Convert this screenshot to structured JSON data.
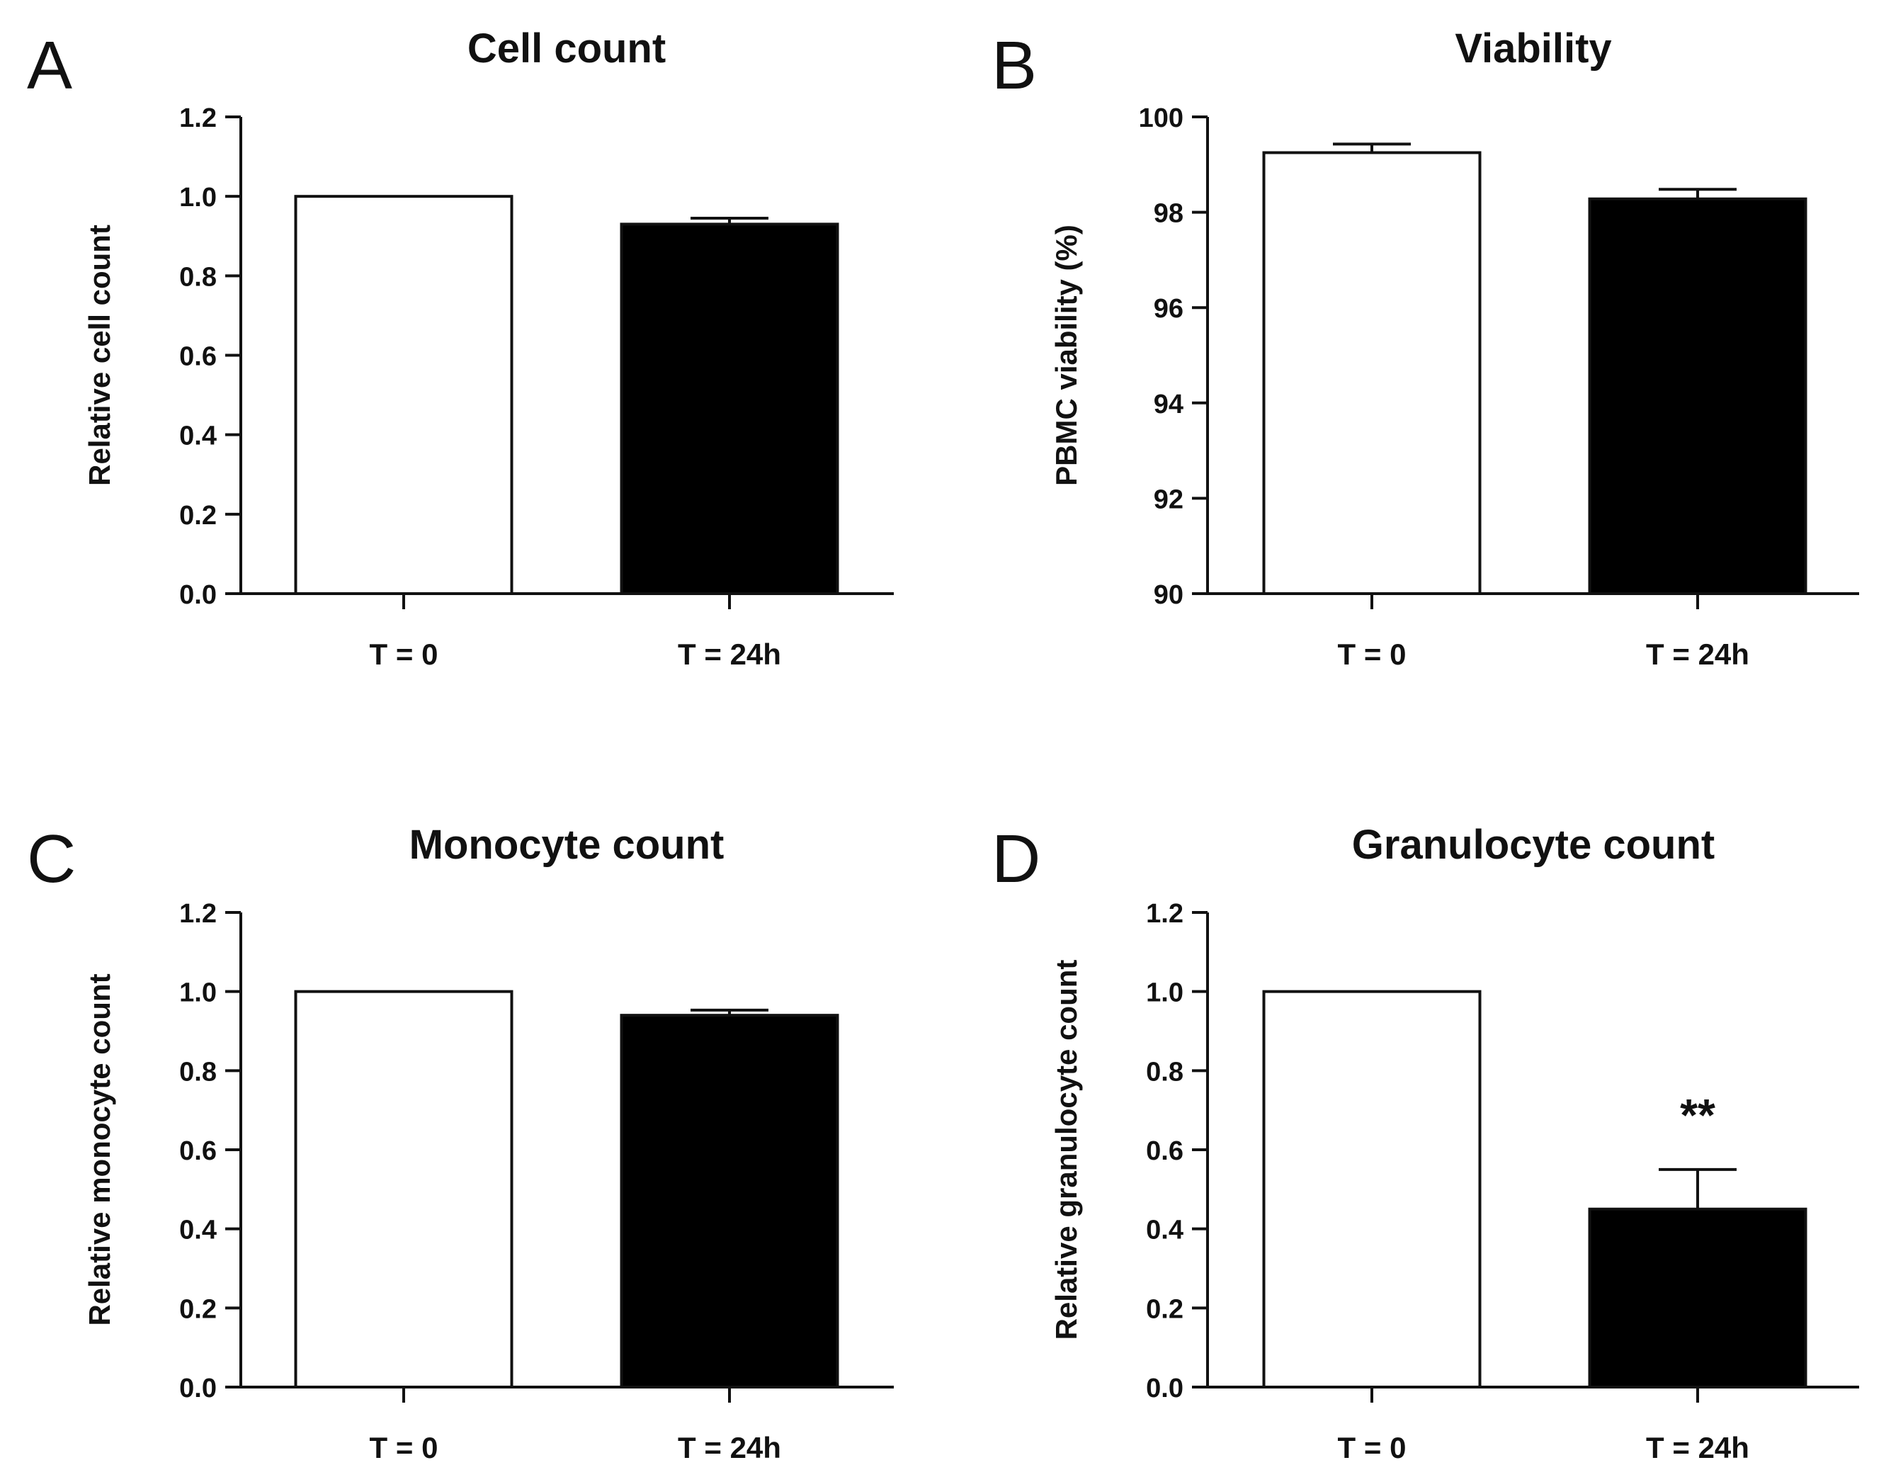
{
  "chart_data": [
    {
      "panel": "A",
      "type": "bar",
      "title": "Cell count",
      "xlabel": "",
      "ylabel": "Relative cell count",
      "ylim": [
        0.0,
        1.2
      ],
      "yticks": [
        "0.0",
        "0.2",
        "0.4",
        "0.6",
        "0.8",
        "1.0",
        "1.2"
      ],
      "categories": [
        "T = 0",
        "T = 24h"
      ],
      "values": [
        1.0,
        0.93
      ],
      "errors": [
        0,
        0.015
      ],
      "colors": [
        "#ffffff",
        "#000000"
      ],
      "annotations": []
    },
    {
      "panel": "B",
      "type": "bar",
      "title": "Viability",
      "xlabel": "",
      "ylabel": "PBMC viability (%)",
      "ylim": [
        90,
        100
      ],
      "yticks": [
        "90",
        "92",
        "94",
        "96",
        "98",
        "100"
      ],
      "categories": [
        "T = 0",
        "T = 24h"
      ],
      "values": [
        99.25,
        98.28
      ],
      "errors": [
        0.18,
        0.2
      ],
      "colors": [
        "#ffffff",
        "#000000"
      ],
      "annotations": []
    },
    {
      "panel": "C",
      "type": "bar",
      "title": "Monocyte count",
      "xlabel": "",
      "ylabel": "Relative monocyte count",
      "ylim": [
        0.0,
        1.2
      ],
      "yticks": [
        "0.0",
        "0.2",
        "0.4",
        "0.6",
        "0.8",
        "1.0",
        "1.2"
      ],
      "categories": [
        "T = 0",
        "T = 24h"
      ],
      "values": [
        1.0,
        0.94
      ],
      "errors": [
        0,
        0.013
      ],
      "colors": [
        "#ffffff",
        "#000000"
      ],
      "annotations": []
    },
    {
      "panel": "D",
      "type": "bar",
      "title": "Granulocyte count",
      "xlabel": "",
      "ylabel": "Relative granulocyte count",
      "ylim": [
        0.0,
        1.2
      ],
      "yticks": [
        "0.0",
        "0.2",
        "0.4",
        "0.6",
        "0.8",
        "1.0",
        "1.2"
      ],
      "categories": [
        "T = 0",
        "T = 24h"
      ],
      "values": [
        1.0,
        0.45
      ],
      "errors": [
        0,
        0.1
      ],
      "colors": [
        "#ffffff",
        "#000000"
      ],
      "annotations": [
        {
          "category": "T = 24h",
          "text": "**"
        }
      ]
    }
  ]
}
